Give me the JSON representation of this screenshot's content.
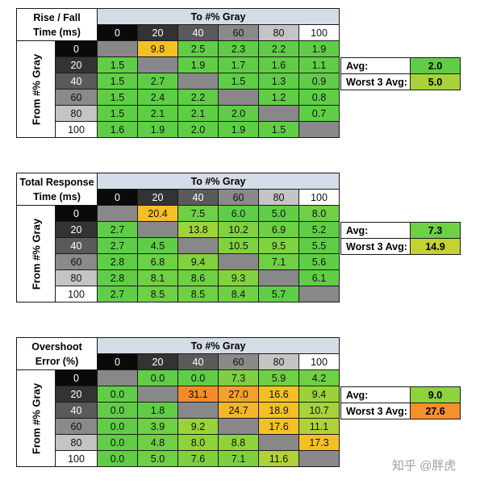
{
  "colors": {
    "header_bg": "#d4dce8",
    "empty": "#888888"
  },
  "gray_shades": {
    "0": "#0a0a0a",
    "20": "#333333",
    "40": "#5a5a5a",
    "60": "#8a8a8a",
    "80": "#c4c4c4",
    "100": "#ffffff"
  },
  "tables": [
    {
      "title": [
        "Rise / Fall",
        "Time (ms)"
      ],
      "to_label": "To #% Gray",
      "from_label": "From #% Gray",
      "levels": [
        "0",
        "20",
        "40",
        "60",
        "80",
        "100"
      ],
      "rows": [
        [
          null,
          "9.8",
          "2.5",
          "2.3",
          "2.2",
          "1.9"
        ],
        [
          "1.5",
          null,
          "1.9",
          "1.7",
          "1.6",
          "1.1"
        ],
        [
          "1.5",
          "2.7",
          null,
          "1.5",
          "1.3",
          "0.9"
        ],
        [
          "1.5",
          "2.4",
          "2.2",
          null,
          "1.2",
          "0.8"
        ],
        [
          "1.5",
          "2.1",
          "2.1",
          "2.0",
          null,
          "0.7"
        ],
        [
          "1.6",
          "1.9",
          "2.0",
          "1.9",
          "1.5",
          null
        ]
      ],
      "colors": [
        [
          null,
          "#f4c026",
          "#5fce46",
          "#5fce46",
          "#5fce46",
          "#5fce46"
        ],
        [
          "#5fce46",
          null,
          "#5fce46",
          "#5fce46",
          "#5fce46",
          "#5fce46"
        ],
        [
          "#5fce46",
          "#5fce46",
          null,
          "#5fce46",
          "#5fce46",
          "#5fce46"
        ],
        [
          "#5fce46",
          "#5fce46",
          "#5fce46",
          null,
          "#5fce46",
          "#5fce46"
        ],
        [
          "#5fce46",
          "#5fce46",
          "#5fce46",
          "#5fce46",
          null,
          "#5fce46"
        ],
        [
          "#5fce46",
          "#5fce46",
          "#5fce46",
          "#5fce46",
          "#5fce46",
          null
        ]
      ],
      "avg_label": "Avg:",
      "avg_value": "2.0",
      "avg_color": "#5fce46",
      "worst_label": "Worst 3 Avg:",
      "worst_value": "5.0",
      "worst_color": "#a8d23a"
    },
    {
      "title": [
        "Total Response",
        "Time (ms)"
      ],
      "to_label": "To #% Gray",
      "from_label": "From #% Gray",
      "levels": [
        "0",
        "20",
        "40",
        "60",
        "80",
        "100"
      ],
      "rows": [
        [
          null,
          "20.4",
          "7.5",
          "6.0",
          "5.0",
          "8.0"
        ],
        [
          "2.7",
          null,
          "13.8",
          "10.2",
          "6.9",
          "5.2"
        ],
        [
          "2.7",
          "4.5",
          null,
          "10.5",
          "9.5",
          "5.5"
        ],
        [
          "2.8",
          "6.8",
          "9.4",
          null,
          "7.1",
          "5.6"
        ],
        [
          "2.8",
          "8.1",
          "8.6",
          "9.3",
          null,
          "6.1"
        ],
        [
          "2.7",
          "8.5",
          "8.5",
          "8.4",
          "5.7",
          null
        ]
      ],
      "colors": [
        [
          null,
          "#f4c026",
          "#6ed044",
          "#5fce46",
          "#5fce46",
          "#6ed044"
        ],
        [
          "#5fce46",
          null,
          "#9ed43a",
          "#80d23f",
          "#6ed044",
          "#5fce46"
        ],
        [
          "#5fce46",
          "#5fce46",
          null,
          "#80d23f",
          "#80d23f",
          "#5fce46"
        ],
        [
          "#5fce46",
          "#6ed044",
          "#80d23f",
          null,
          "#6ed044",
          "#5fce46"
        ],
        [
          "#5fce46",
          "#6ed044",
          "#6ed044",
          "#80d23f",
          null,
          "#5fce46"
        ],
        [
          "#5fce46",
          "#6ed044",
          "#6ed044",
          "#6ed044",
          "#5fce46",
          null
        ]
      ],
      "avg_label": "Avg:",
      "avg_value": "7.3",
      "avg_color": "#6ed044",
      "worst_label": "Worst 3 Avg:",
      "worst_value": "14.9",
      "worst_color": "#c4d232"
    },
    {
      "title": [
        "Overshoot",
        "Error (%)"
      ],
      "to_label": "To #% Gray",
      "from_label": "From #% Gray",
      "levels": [
        "0",
        "20",
        "40",
        "60",
        "80",
        "100"
      ],
      "rows": [
        [
          null,
          "0.0",
          "0.0",
          "7.3",
          "5.9",
          "4.2"
        ],
        [
          "0.0",
          null,
          "31.1",
          "27.0",
          "16.6",
          "9.4"
        ],
        [
          "0.0",
          "1.8",
          null,
          "24.7",
          "18.9",
          "10.7"
        ],
        [
          "0.0",
          "3.9",
          "9.2",
          null,
          "17.6",
          "11.1"
        ],
        [
          "0.0",
          "4.8",
          "8.0",
          "8.8",
          null,
          "17.3"
        ],
        [
          "0.0",
          "5.0",
          "7.6",
          "7.1",
          "11.6",
          null
        ]
      ],
      "colors": [
        [
          null,
          "#5fce46",
          "#5fce46",
          "#7ed040",
          "#6ed044",
          "#6ed044"
        ],
        [
          "#5fce46",
          null,
          "#f58a2c",
          "#f5a02c",
          "#f4c026",
          "#9ad23a"
        ],
        [
          "#5fce46",
          "#5fce46",
          null,
          "#f5b62a",
          "#f4c026",
          "#a8d23a"
        ],
        [
          "#5fce46",
          "#6ed044",
          "#9ad23a",
          null,
          "#f4c026",
          "#b0d238"
        ],
        [
          "#5fce46",
          "#6ed044",
          "#8ed23c",
          "#8ed23c",
          null,
          "#f4c026"
        ],
        [
          "#5fce46",
          "#6ed044",
          "#7ed040",
          "#7ed040",
          "#b0d238",
          null
        ]
      ],
      "avg_label": "Avg:",
      "avg_value": "9.0",
      "avg_color": "#8ed23c",
      "worst_label": "Worst 3 Avg:",
      "worst_value": "27.6",
      "worst_color": "#f5902c"
    }
  ],
  "watermark": "知乎 @胖虎",
  "chart_data": [
    {
      "type": "heatmap",
      "title": "Rise / Fall Time (ms)",
      "xlabel": "To #% Gray",
      "ylabel": "From #% Gray",
      "x": [
        0,
        20,
        40,
        60,
        80,
        100
      ],
      "y": [
        0,
        20,
        40,
        60,
        80,
        100
      ],
      "values": [
        [
          null,
          9.8,
          2.5,
          2.3,
          2.2,
          1.9
        ],
        [
          1.5,
          null,
          1.9,
          1.7,
          1.6,
          1.1
        ],
        [
          1.5,
          2.7,
          null,
          1.5,
          1.3,
          0.9
        ],
        [
          1.5,
          2.4,
          2.2,
          null,
          1.2,
          0.8
        ],
        [
          1.5,
          2.1,
          2.1,
          2.0,
          null,
          0.7
        ],
        [
          1.6,
          1.9,
          2.0,
          1.9,
          1.5,
          null
        ]
      ],
      "avg": 2.0,
      "worst_3_avg": 5.0
    },
    {
      "type": "heatmap",
      "title": "Total Response Time (ms)",
      "xlabel": "To #% Gray",
      "ylabel": "From #% Gray",
      "x": [
        0,
        20,
        40,
        60,
        80,
        100
      ],
      "y": [
        0,
        20,
        40,
        60,
        80,
        100
      ],
      "values": [
        [
          null,
          20.4,
          7.5,
          6.0,
          5.0,
          8.0
        ],
        [
          2.7,
          null,
          13.8,
          10.2,
          6.9,
          5.2
        ],
        [
          2.7,
          4.5,
          null,
          10.5,
          9.5,
          5.5
        ],
        [
          2.8,
          6.8,
          9.4,
          null,
          7.1,
          5.6
        ],
        [
          2.8,
          8.1,
          8.6,
          9.3,
          null,
          6.1
        ],
        [
          2.7,
          8.5,
          8.5,
          8.4,
          5.7,
          null
        ]
      ],
      "avg": 7.3,
      "worst_3_avg": 14.9
    },
    {
      "type": "heatmap",
      "title": "Overshoot Error (%)",
      "xlabel": "To #% Gray",
      "ylabel": "From #% Gray",
      "x": [
        0,
        20,
        40,
        60,
        80,
        100
      ],
      "y": [
        0,
        20,
        40,
        60,
        80,
        100
      ],
      "values": [
        [
          null,
          0.0,
          0.0,
          7.3,
          5.9,
          4.2
        ],
        [
          0.0,
          null,
          31.1,
          27.0,
          16.6,
          9.4
        ],
        [
          0.0,
          1.8,
          null,
          24.7,
          18.9,
          10.7
        ],
        [
          0.0,
          3.9,
          9.2,
          null,
          17.6,
          11.1
        ],
        [
          0.0,
          4.8,
          8.0,
          8.8,
          null,
          17.3
        ],
        [
          0.0,
          5.0,
          7.6,
          7.1,
          11.6,
          null
        ]
      ],
      "avg": 9.0,
      "worst_3_avg": 27.6
    }
  ]
}
